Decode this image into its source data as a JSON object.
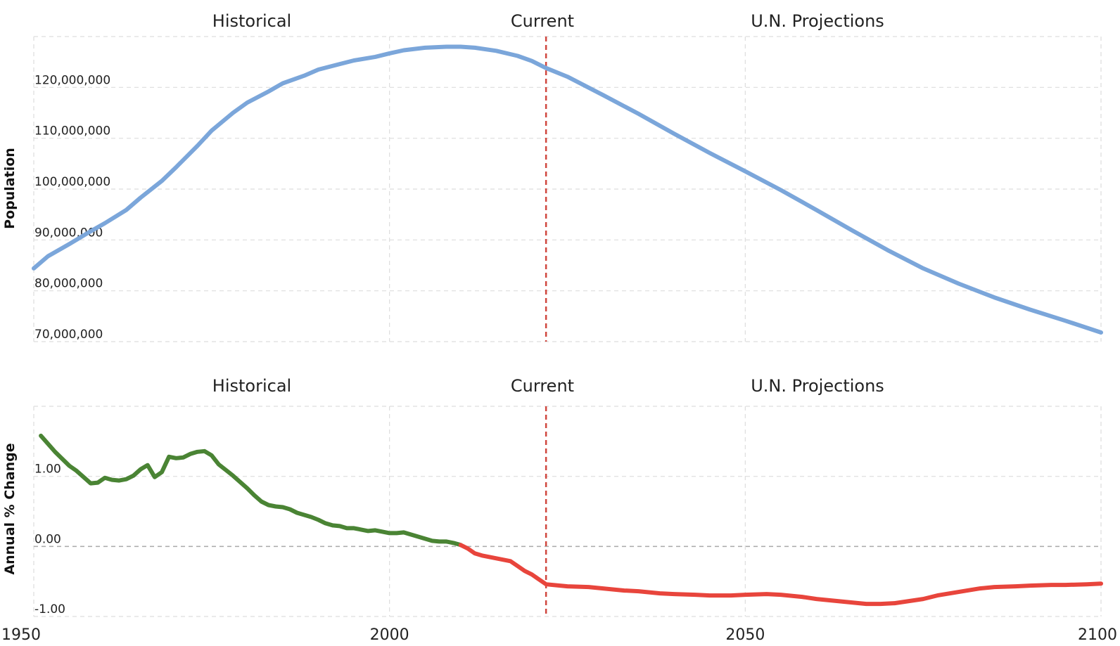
{
  "chart_data": [
    {
      "type": "line",
      "title": "",
      "xlabel": "",
      "ylabel": "Population",
      "xlim": [
        1950,
        2100
      ],
      "ylim": [
        70000000,
        130000000
      ],
      "grid": true,
      "period_labels": [
        "Historical",
        "Current",
        "U.N. Projections"
      ],
      "current_year": 2022,
      "x_ticks": [
        "1950",
        "2000",
        "2050",
        "2100"
      ],
      "y_ticks": [
        {
          "value": 70000000,
          "label": "70,000,000"
        },
        {
          "value": 80000000,
          "label": "80,000,000"
        },
        {
          "value": 90000000,
          "label": "90,000,000"
        },
        {
          "value": 100000000,
          "label": "100,000,000"
        },
        {
          "value": 110000000,
          "label": "110,000,000"
        },
        {
          "value": 120000000,
          "label": "120,000,000"
        }
      ],
      "series": [
        {
          "color": "#7ba6da",
          "x": [
            1950,
            1952,
            1955,
            1958,
            1960,
            1963,
            1965,
            1968,
            1970,
            1973,
            1975,
            1978,
            1980,
            1983,
            1985,
            1988,
            1990,
            1993,
            1995,
            1998,
            2000,
            2002,
            2005,
            2008,
            2010,
            2012,
            2015,
            2018,
            2020,
            2022,
            2025,
            2030,
            2035,
            2040,
            2045,
            2050,
            2055,
            2060,
            2065,
            2070,
            2075,
            2080,
            2085,
            2090,
            2095,
            2100
          ],
          "y": [
            84400000,
            86800000,
            89200000,
            91700000,
            93300000,
            95900000,
            98300000,
            101600000,
            104300000,
            108500000,
            111500000,
            115000000,
            117000000,
            119200000,
            120800000,
            122300000,
            123500000,
            124600000,
            125300000,
            126000000,
            126700000,
            127300000,
            127800000,
            128000000,
            128000000,
            127800000,
            127200000,
            126200000,
            125200000,
            123800000,
            122100000,
            118500000,
            114800000,
            110900000,
            107100000,
            103500000,
            99800000,
            95900000,
            91900000,
            88000000,
            84400000,
            81400000,
            78700000,
            76300000,
            74100000,
            71800000
          ]
        }
      ]
    },
    {
      "type": "line",
      "title": "",
      "xlabel": "",
      "ylabel": "Annual % Change",
      "xlim": [
        1950,
        2100
      ],
      "ylim": [
        -1.0,
        2.0
      ],
      "grid": true,
      "period_labels": [
        "Historical",
        "Current",
        "U.N. Projections"
      ],
      "current_year": 2022,
      "x_ticks": [
        "1950",
        "2000",
        "2050",
        "2100"
      ],
      "y_ticks": [
        {
          "value": -1.0,
          "label": "-1.00"
        },
        {
          "value": 0.0,
          "label": "0.00"
        },
        {
          "value": 1.0,
          "label": "1.00"
        }
      ],
      "series": [
        {
          "color": "#4a8434",
          "x": [
            1951,
            1953,
            1955,
            1956,
            1958,
            1959,
            1960,
            1961,
            1962,
            1963,
            1964,
            1965,
            1966,
            1967,
            1968,
            1969,
            1970,
            1971,
            1972,
            1973,
            1974,
            1975,
            1976,
            1977,
            1978,
            1980,
            1981,
            1982,
            1983,
            1984,
            1985,
            1986,
            1987,
            1989,
            1990,
            1991,
            1992,
            1993,
            1994,
            1995,
            1996,
            1997,
            1998,
            1999,
            2000,
            2001,
            2002,
            2003,
            2004,
            2005,
            2006,
            2007,
            2008,
            2009,
            2010
          ],
          "y": [
            1.58,
            1.35,
            1.15,
            1.08,
            0.9,
            0.91,
            0.98,
            0.95,
            0.94,
            0.96,
            1.01,
            1.1,
            1.16,
            0.99,
            1.06,
            1.28,
            1.26,
            1.27,
            1.32,
            1.35,
            1.36,
            1.3,
            1.17,
            1.09,
            1.01,
            0.83,
            0.73,
            0.64,
            0.59,
            0.57,
            0.56,
            0.53,
            0.48,
            0.42,
            0.38,
            0.33,
            0.3,
            0.29,
            0.26,
            0.26,
            0.24,
            0.22,
            0.23,
            0.21,
            0.19,
            0.19,
            0.2,
            0.17,
            0.14,
            0.11,
            0.08,
            0.07,
            0.07,
            0.05,
            0.02
          ]
        },
        {
          "color": "#e8453c",
          "x": [
            2010,
            2011,
            2012,
            2013,
            2014,
            2015,
            2016,
            2017,
            2018,
            2019,
            2020,
            2021,
            2022,
            2025,
            2028,
            2030,
            2033,
            2035,
            2038,
            2040,
            2043,
            2045,
            2048,
            2050,
            2053,
            2055,
            2058,
            2060,
            2063,
            2065,
            2067,
            2069,
            2071,
            2073,
            2075,
            2077,
            2080,
            2083,
            2085,
            2088,
            2090,
            2093,
            2095,
            2098,
            2100
          ],
          "y": [
            0.02,
            -0.03,
            -0.1,
            -0.13,
            -0.15,
            -0.17,
            -0.19,
            -0.21,
            -0.28,
            -0.35,
            -0.4,
            -0.47,
            -0.54,
            -0.57,
            -0.58,
            -0.6,
            -0.63,
            -0.64,
            -0.67,
            -0.68,
            -0.69,
            -0.7,
            -0.7,
            -0.69,
            -0.68,
            -0.69,
            -0.72,
            -0.75,
            -0.78,
            -0.8,
            -0.82,
            -0.82,
            -0.81,
            -0.78,
            -0.75,
            -0.7,
            -0.65,
            -0.6,
            -0.58,
            -0.57,
            -0.56,
            -0.55,
            -0.55,
            -0.54,
            -0.53
          ]
        }
      ]
    }
  ]
}
